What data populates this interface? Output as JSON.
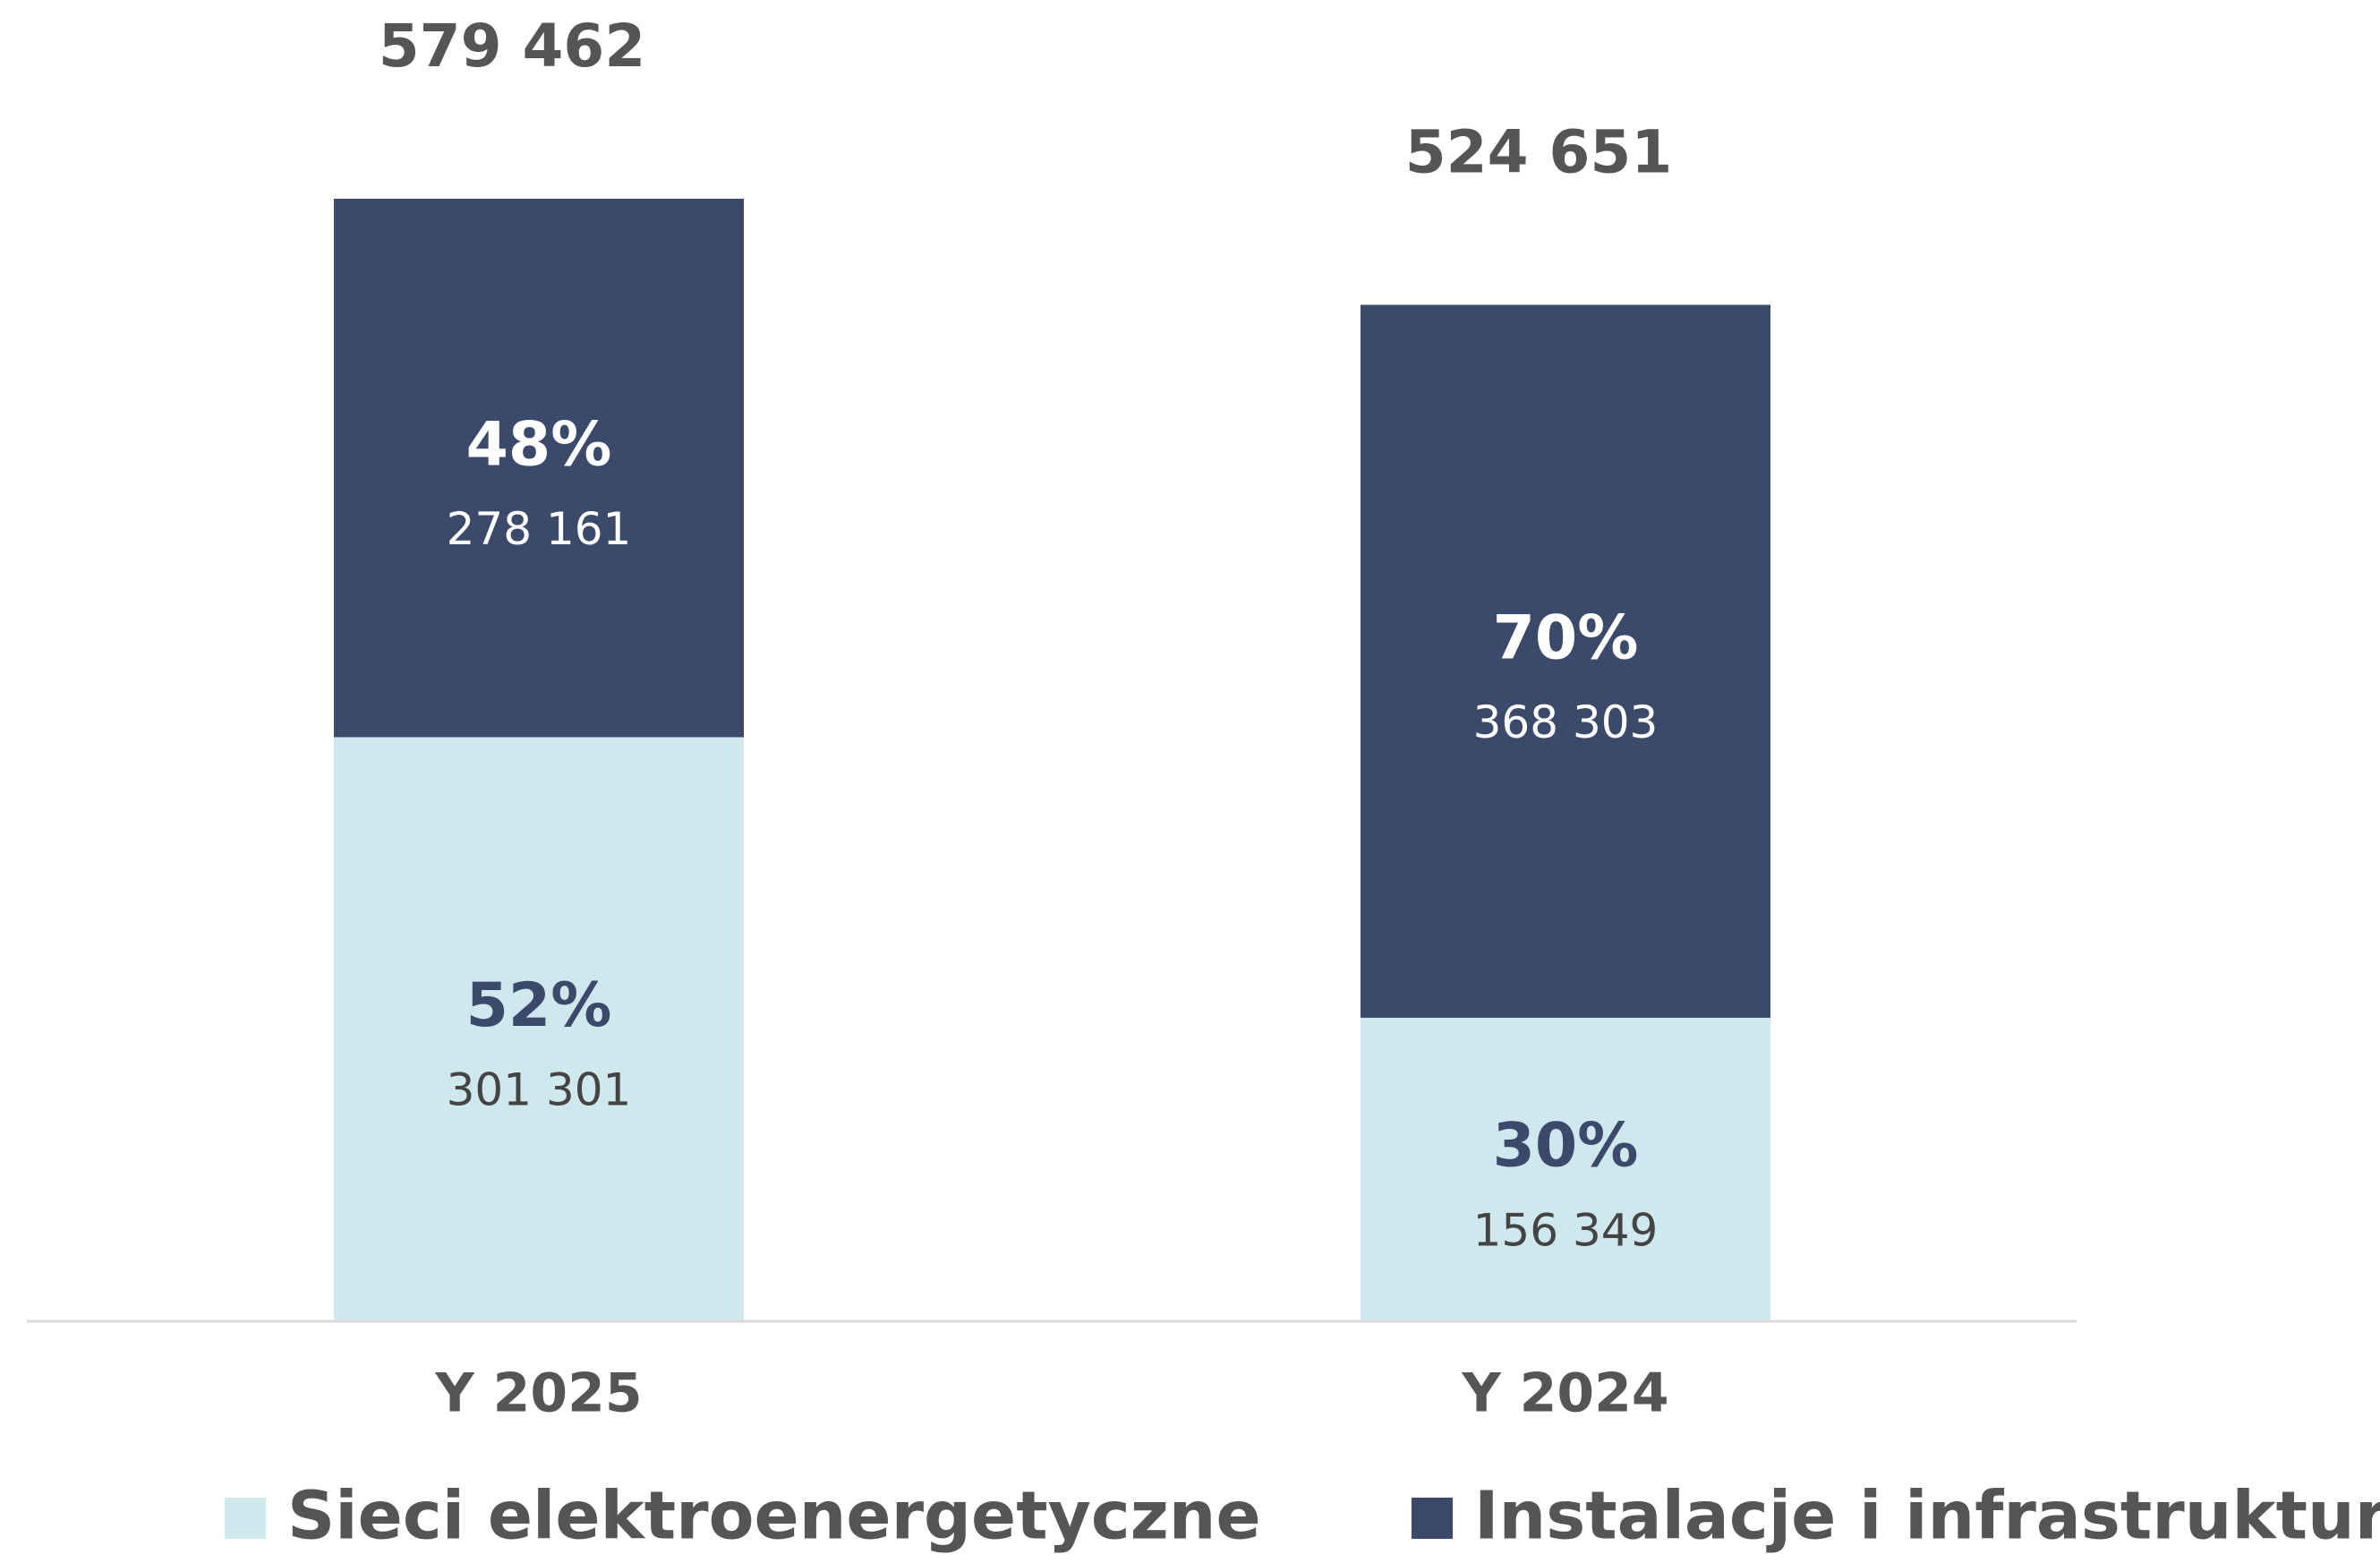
{
  "chart_data": {
    "type": "stacked_bar",
    "categories": [
      "Y 2025",
      "Y 2024"
    ],
    "series": [
      {
        "name": "Sieci elektroenergetyczne",
        "color": "#cfe8ee",
        "text_color": "#3b4a6b",
        "values": [
          301301,
          156349
        ],
        "value_labels": [
          "301 301",
          "156 349"
        ],
        "shares": [
          52,
          30
        ],
        "share_labels": [
          "52%",
          "30%"
        ]
      },
      {
        "name": "Instalacje i infrastruktura",
        "color": "#3b4a6b",
        "text_color": "#ffffff",
        "values": [
          278161,
          368303
        ],
        "value_labels": [
          "278 161",
          "368 303"
        ],
        "shares": [
          48,
          70
        ],
        "share_labels": [
          "48%",
          "70%"
        ]
      }
    ],
    "totals": [
      579462,
      524651
    ],
    "total_labels": [
      "579 462",
      "524 651"
    ],
    "legend": "bottom"
  }
}
